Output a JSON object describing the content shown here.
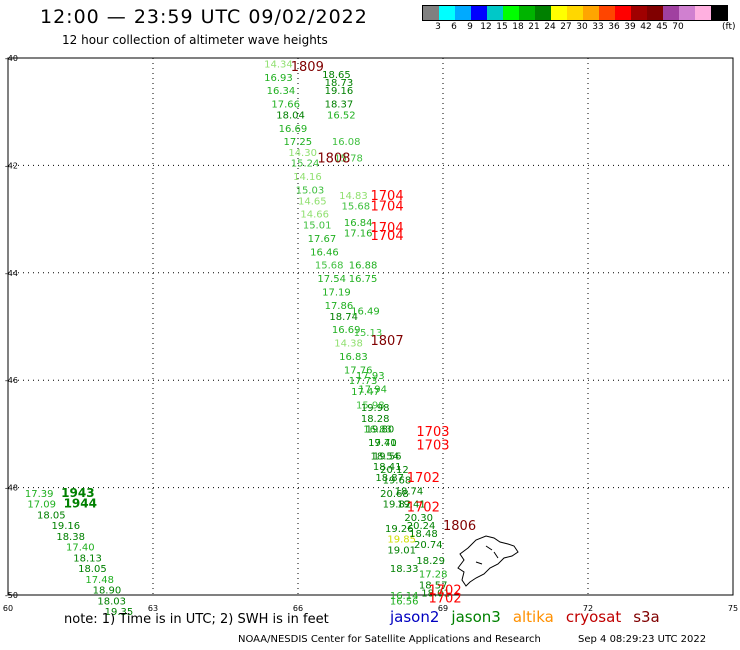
{
  "header": {
    "title": "12:00 — 23:59 UTC 09/02/2022",
    "subtitle": "12 hour collection of altimeter wave heights"
  },
  "color_scale": {
    "colors": [
      "#808080",
      "#00ffff",
      "#00aaff",
      "#0000ff",
      "#00c8c8",
      "#00ff00",
      "#00b400",
      "#008000",
      "#ffff00",
      "#ffd700",
      "#ffa500",
      "#ff4500",
      "#ff0000",
      "#a00000",
      "#800000",
      "#a040a0",
      "#d080d0",
      "#ffb0e0",
      "#000000"
    ],
    "labels": [
      "3",
      "6",
      "9",
      "12",
      "15",
      "18",
      "21",
      "24",
      "27",
      "30",
      "33",
      "36",
      "39",
      "42",
      "45",
      "70"
    ],
    "unit": "(ft)"
  },
  "axes": {
    "y_labels": [
      "-40",
      "-42",
      "-44",
      "-46",
      "-48",
      "-50"
    ],
    "x_labels": [
      "60",
      "63",
      "66",
      "69",
      "72",
      "75"
    ]
  },
  "chart_data": {
    "type": "scatter",
    "x_range": [
      60,
      75
    ],
    "y_range": [
      -50,
      -40
    ],
    "points": [
      {
        "lon": 65.3,
        "lat": -40.1,
        "v": "14.34",
        "c": "#90e070"
      },
      {
        "lon": 65.3,
        "lat": -40.35,
        "v": "16.93",
        "c": "#20b020"
      },
      {
        "lon": 65.35,
        "lat": -40.6,
        "v": "16.34",
        "c": "#20b020"
      },
      {
        "lon": 65.45,
        "lat": -40.85,
        "v": "17.66",
        "c": "#20b020"
      },
      {
        "lon": 65.55,
        "lat": -41.05,
        "v": "18.04",
        "c": "#008000"
      },
      {
        "lon": 65.6,
        "lat": -41.3,
        "v": "16.69",
        "c": "#20b020"
      },
      {
        "lon": 65.7,
        "lat": -41.55,
        "v": "17.25",
        "c": "#20b020"
      },
      {
        "lon": 65.8,
        "lat": -41.75,
        "v": "14.30",
        "c": "#90e070"
      },
      {
        "lon": 65.85,
        "lat": -41.95,
        "v": "15.24",
        "c": "#40c040"
      },
      {
        "lon": 65.9,
        "lat": -42.2,
        "v": "14.16",
        "c": "#90e070"
      },
      {
        "lon": 65.95,
        "lat": -42.45,
        "v": "15.03",
        "c": "#40c040"
      },
      {
        "lon": 66.0,
        "lat": -42.65,
        "v": "14.65",
        "c": "#90e070"
      },
      {
        "lon": 66.05,
        "lat": -42.9,
        "v": "14.66",
        "c": "#90e070"
      },
      {
        "lon": 66.1,
        "lat": -43.1,
        "v": "15.01",
        "c": "#40c040"
      },
      {
        "lon": 66.2,
        "lat": -43.35,
        "v": "17.67",
        "c": "#20b020"
      },
      {
        "lon": 66.25,
        "lat": -43.6,
        "v": "16.46",
        "c": "#20b020"
      },
      {
        "lon": 66.35,
        "lat": -43.85,
        "v": "15.68",
        "c": "#40c040"
      },
      {
        "lon": 66.4,
        "lat": -44.1,
        "v": "17.54",
        "c": "#20b020"
      },
      {
        "lon": 66.5,
        "lat": -44.35,
        "v": "17.19",
        "c": "#20b020"
      },
      {
        "lon": 66.55,
        "lat": -44.6,
        "v": "17.86",
        "c": "#20b020"
      },
      {
        "lon": 66.65,
        "lat": -44.8,
        "v": "18.74",
        "c": "#008000"
      },
      {
        "lon": 66.7,
        "lat": -45.05,
        "v": "16.69",
        "c": "#20b020"
      },
      {
        "lon": 66.75,
        "lat": -45.3,
        "v": "14.38",
        "c": "#90e070"
      },
      {
        "lon": 66.85,
        "lat": -45.55,
        "v": "16.83",
        "c": "#20b020"
      },
      {
        "lon": 66.95,
        "lat": -45.8,
        "v": "17.76",
        "c": "#20b020"
      },
      {
        "lon": 67.05,
        "lat": -46.0,
        "v": "17.73",
        "c": "#20b020"
      },
      {
        "lon": 67.1,
        "lat": -46.2,
        "v": "17.47",
        "c": "#20b020"
      },
      {
        "lon": 67.2,
        "lat": -46.45,
        "v": "15.98",
        "c": "#40c040"
      },
      {
        "lon": 67.3,
        "lat": -46.7,
        "v": "18.28",
        "c": "#008000"
      },
      {
        "lon": 67.35,
        "lat": -46.9,
        "v": "16.83",
        "c": "#20b020"
      },
      {
        "lon": 67.45,
        "lat": -47.15,
        "v": "17.71",
        "c": "#20b020"
      },
      {
        "lon": 67.5,
        "lat": -47.4,
        "v": "18.54",
        "c": "#008000"
      },
      {
        "lon": 67.55,
        "lat": -47.6,
        "v": "18.41",
        "c": "#008000"
      },
      {
        "lon": 67.6,
        "lat": -47.8,
        "v": "18.87",
        "c": "#008000"
      },
      {
        "lon": 67.7,
        "lat": -48.1,
        "v": "20.68",
        "c": "#008000"
      },
      {
        "lon": 67.75,
        "lat": -48.3,
        "v": "19.82",
        "c": "#008000"
      },
      {
        "lon": 67.8,
        "lat": -48.75,
        "v": "19.26",
        "c": "#008000"
      },
      {
        "lon": 67.85,
        "lat": -48.95,
        "v": "19.85",
        "c": "#d0e000"
      },
      {
        "lon": 67.85,
        "lat": -49.15,
        "v": "19.01",
        "c": "#008000"
      },
      {
        "lon": 67.9,
        "lat": -49.5,
        "v": "18.33",
        "c": "#008000"
      },
      {
        "lon": 67.9,
        "lat": -50.0,
        "v": "16.14",
        "c": "#20b020"
      },
      {
        "lon": 67.9,
        "lat": -50.1,
        "v": "16.56",
        "c": "#20b020"
      },
      {
        "lon": 66.5,
        "lat": -40.3,
        "v": "18.65",
        "c": "#008000"
      },
      {
        "lon": 66.55,
        "lat": -40.45,
        "v": "18.73",
        "c": "#008000"
      },
      {
        "lon": 66.55,
        "lat": -40.6,
        "v": "19.16",
        "c": "#008000"
      },
      {
        "lon": 66.55,
        "lat": -40.85,
        "v": "18.37",
        "c": "#008000"
      },
      {
        "lon": 66.6,
        "lat": -41.05,
        "v": "16.52",
        "c": "#20b020"
      },
      {
        "lon": 66.7,
        "lat": -41.55,
        "v": "16.08",
        "c": "#40c040"
      },
      {
        "lon": 66.75,
        "lat": -41.85,
        "v": "15.78",
        "c": "#40c040"
      },
      {
        "lon": 66.85,
        "lat": -42.55,
        "v": "14.83",
        "c": "#90e070"
      },
      {
        "lon": 66.9,
        "lat": -42.75,
        "v": "15.68",
        "c": "#40c040"
      },
      {
        "lon": 66.95,
        "lat": -43.05,
        "v": "16.84",
        "c": "#20b020"
      },
      {
        "lon": 66.95,
        "lat": -43.25,
        "v": "17.16",
        "c": "#20b020"
      },
      {
        "lon": 67.05,
        "lat": -43.85,
        "v": "16.88",
        "c": "#20b020"
      },
      {
        "lon": 67.05,
        "lat": -44.1,
        "v": "16.75",
        "c": "#20b020"
      },
      {
        "lon": 67.1,
        "lat": -44.7,
        "v": "16.49",
        "c": "#20b020"
      },
      {
        "lon": 67.15,
        "lat": -45.1,
        "v": "15.13",
        "c": "#40c040"
      },
      {
        "lon": 67.2,
        "lat": -45.9,
        "v": "17.93",
        "c": "#20b020"
      },
      {
        "lon": 67.25,
        "lat": -46.15,
        "v": "17.94",
        "c": "#20b020"
      },
      {
        "lon": 67.3,
        "lat": -46.5,
        "v": "19.98",
        "c": "#008000"
      },
      {
        "lon": 67.4,
        "lat": -46.9,
        "v": "19.80",
        "c": "#008000"
      },
      {
        "lon": 67.45,
        "lat": -47.15,
        "v": "19.40",
        "c": "#008000"
      },
      {
        "lon": 67.55,
        "lat": -47.4,
        "v": "19.56",
        "c": "#008000"
      },
      {
        "lon": 67.7,
        "lat": -47.65,
        "v": "20.12",
        "c": "#008000"
      },
      {
        "lon": 67.75,
        "lat": -47.85,
        "v": "19.68",
        "c": "#008000"
      },
      {
        "lon": 68.0,
        "lat": -48.05,
        "v": "18.74",
        "c": "#008000"
      },
      {
        "lon": 68.05,
        "lat": -48.3,
        "v": "19.41",
        "c": "#008000"
      },
      {
        "lon": 68.2,
        "lat": -48.55,
        "v": "20.30",
        "c": "#008000"
      },
      {
        "lon": 68.25,
        "lat": -48.7,
        "v": "20.24",
        "c": "#008000"
      },
      {
        "lon": 68.3,
        "lat": -48.85,
        "v": "18.48",
        "c": "#008000"
      },
      {
        "lon": 68.4,
        "lat": -49.05,
        "v": "20.74",
        "c": "#008000"
      },
      {
        "lon": 68.45,
        "lat": -49.35,
        "v": "18.29",
        "c": "#008000"
      },
      {
        "lon": 68.5,
        "lat": -49.6,
        "v": "17.28",
        "c": "#20b020"
      },
      {
        "lon": 68.5,
        "lat": -49.8,
        "v": "18.57",
        "c": "#008000"
      },
      {
        "lon": 68.55,
        "lat": -49.95,
        "v": "18.01",
        "c": "#008000"
      },
      {
        "lon": 60.35,
        "lat": -48.1,
        "v": "17.39",
        "c": "#20b020"
      },
      {
        "lon": 60.4,
        "lat": -48.3,
        "v": "17.09",
        "c": "#20b020"
      },
      {
        "lon": 60.6,
        "lat": -48.5,
        "v": "18.05",
        "c": "#008000"
      },
      {
        "lon": 60.9,
        "lat": -48.7,
        "v": "19.16",
        "c": "#008000"
      },
      {
        "lon": 61.0,
        "lat": -48.9,
        "v": "18.38",
        "c": "#008000"
      },
      {
        "lon": 61.2,
        "lat": -49.1,
        "v": "17.40",
        "c": "#20b020"
      },
      {
        "lon": 61.35,
        "lat": -49.3,
        "v": "18.13",
        "c": "#008000"
      },
      {
        "lon": 61.45,
        "lat": -49.5,
        "v": "18.05",
        "c": "#008000"
      },
      {
        "lon": 61.6,
        "lat": -49.7,
        "v": "17.48",
        "c": "#20b020"
      },
      {
        "lon": 61.75,
        "lat": -49.9,
        "v": "18.90",
        "c": "#008000"
      },
      {
        "lon": 61.85,
        "lat": -50.1,
        "v": "18.03",
        "c": "#008000"
      },
      {
        "lon": 62.0,
        "lat": -50.3,
        "v": "19.35",
        "c": "#008000"
      },
      {
        "lon": 61.1,
        "lat": -48.1,
        "v": "1943",
        "c": "#008000",
        "bold": true
      },
      {
        "lon": 61.15,
        "lat": -48.3,
        "v": "1944",
        "c": "#008000",
        "bold": true
      }
    ],
    "time_labels": [
      {
        "lon": 65.85,
        "lat": -40.15,
        "v": "1809",
        "c": "#800000"
      },
      {
        "lon": 66.4,
        "lat": -41.85,
        "v": "1808",
        "c": "#800000"
      },
      {
        "lon": 67.5,
        "lat": -42.55,
        "v": "1704",
        "c": "#ff0000"
      },
      {
        "lon": 67.5,
        "lat": -42.75,
        "v": "1704",
        "c": "#ff0000"
      },
      {
        "lon": 67.5,
        "lat": -43.15,
        "v": "1704",
        "c": "#ff0000"
      },
      {
        "lon": 67.5,
        "lat": -43.3,
        "v": "1704",
        "c": "#ff0000"
      },
      {
        "lon": 67.5,
        "lat": -45.25,
        "v": "1807",
        "c": "#800000"
      },
      {
        "lon": 68.45,
        "lat": -46.95,
        "v": "1703",
        "c": "#ff0000"
      },
      {
        "lon": 68.45,
        "lat": -47.2,
        "v": "1703",
        "c": "#ff0000"
      },
      {
        "lon": 68.25,
        "lat": -47.8,
        "v": "1702",
        "c": "#ff0000"
      },
      {
        "lon": 68.25,
        "lat": -48.35,
        "v": "1702",
        "c": "#ff0000"
      },
      {
        "lon": 69.0,
        "lat": -48.7,
        "v": "1806",
        "c": "#800000"
      },
      {
        "lon": 68.7,
        "lat": -49.9,
        "v": "1702",
        "c": "#ff0000"
      },
      {
        "lon": 68.7,
        "lat": -50.05,
        "v": "1702",
        "c": "#ff0000"
      }
    ]
  },
  "note": "note: 1) Time is in UTC; 2) SWH is in feet",
  "satellites": [
    {
      "name": "jason2",
      "color": "#0000c0"
    },
    {
      "name": "jason3",
      "color": "#008000"
    },
    {
      "name": "altika",
      "color": "#ff9000"
    },
    {
      "name": "cryosat",
      "color": "#c00000"
    },
    {
      "name": "s3a",
      "color": "#800000"
    }
  ],
  "footer": "NOAA/NESDIS Center for Satellite Applications and Research",
  "timestamp": "Sep  4 08:29:23 UTC 2022"
}
